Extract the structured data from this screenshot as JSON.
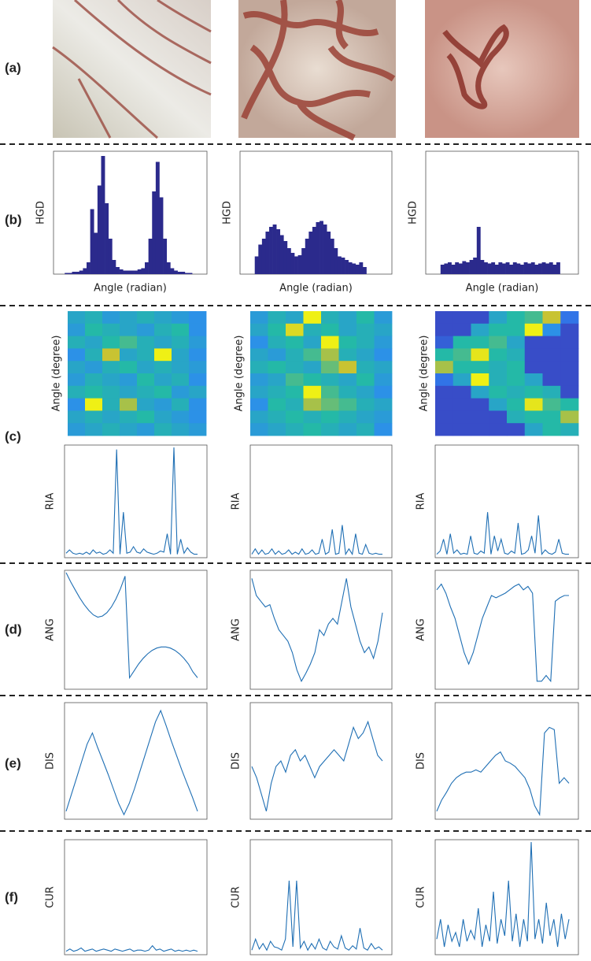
{
  "row_labels": [
    "(a)",
    "(b)",
    "(c)",
    "(d)",
    "(e)",
    "(f)"
  ],
  "ylim": [
    0,
    1
  ],
  "hgd": {
    "type": "histogram",
    "ylabel": "HGD",
    "xlabel": "Angle (radian)",
    "color": "#2b2a8c",
    "plots": [
      [
        0,
        0,
        0.01,
        0.01,
        0.02,
        0.02,
        0.03,
        0.05,
        0.1,
        0.55,
        0.35,
        0.75,
        1.0,
        0.6,
        0.3,
        0.12,
        0.06,
        0.04,
        0.03,
        0.03,
        0.03,
        0.03,
        0.04,
        0.05,
        0.1,
        0.3,
        0.7,
        0.95,
        0.65,
        0.3,
        0.1,
        0.05,
        0.03,
        0.02,
        0.02,
        0.01,
        0.01,
        0,
        0,
        0
      ],
      [
        0,
        0,
        0,
        0.15,
        0.25,
        0.3,
        0.36,
        0.4,
        0.42,
        0.38,
        0.33,
        0.28,
        0.22,
        0.18,
        0.15,
        0.16,
        0.22,
        0.3,
        0.36,
        0.4,
        0.44,
        0.45,
        0.42,
        0.36,
        0.3,
        0.22,
        0.15,
        0.14,
        0.12,
        0.1,
        0.09,
        0.08,
        0.1,
        0.06,
        0,
        0,
        0,
        0,
        0,
        0
      ],
      [
        0,
        0,
        0,
        0.08,
        0.09,
        0.1,
        0.08,
        0.1,
        0.09,
        0.11,
        0.1,
        0.12,
        0.14,
        0.4,
        0.12,
        0.1,
        0.09,
        0.1,
        0.08,
        0.1,
        0.09,
        0.1,
        0.08,
        0.1,
        0.09,
        0.08,
        0.1,
        0.09,
        0.1,
        0.08,
        0.09,
        0.1,
        0.09,
        0.1,
        0.08,
        0.1,
        0,
        0,
        0,
        0
      ]
    ]
  },
  "heatmap": {
    "ylabel": "Angle (degree)",
    "plots": [
      [
        [
          0.4,
          0.45,
          0.35,
          0.4,
          0.45,
          0.4,
          0.35,
          0.3
        ],
        [
          0.35,
          0.5,
          0.45,
          0.4,
          0.35,
          0.45,
          0.5,
          0.3
        ],
        [
          0.45,
          0.4,
          0.5,
          0.55,
          0.45,
          0.4,
          0.45,
          0.35
        ],
        [
          0.3,
          0.45,
          0.75,
          0.4,
          0.45,
          0.95,
          0.4,
          0.3
        ],
        [
          0.4,
          0.35,
          0.45,
          0.5,
          0.4,
          0.45,
          0.4,
          0.35
        ],
        [
          0.35,
          0.45,
          0.4,
          0.35,
          0.5,
          0.4,
          0.45,
          0.3
        ],
        [
          0.45,
          0.5,
          0.45,
          0.4,
          0.45,
          0.5,
          0.35,
          0.4
        ],
        [
          0.3,
          0.95,
          0.45,
          0.7,
          0.4,
          0.35,
          0.45,
          0.3
        ],
        [
          0.4,
          0.45,
          0.4,
          0.45,
          0.5,
          0.4,
          0.35,
          0.3
        ],
        [
          0.35,
          0.4,
          0.45,
          0.4,
          0.35,
          0.45,
          0.4,
          0.35
        ]
      ],
      [
        [
          0.35,
          0.45,
          0.4,
          0.95,
          0.45,
          0.4,
          0.5,
          0.35
        ],
        [
          0.4,
          0.5,
          0.85,
          0.45,
          0.5,
          0.4,
          0.45,
          0.4
        ],
        [
          0.3,
          0.45,
          0.5,
          0.4,
          0.95,
          0.5,
          0.45,
          0.35
        ],
        [
          0.4,
          0.35,
          0.45,
          0.55,
          0.7,
          0.45,
          0.4,
          0.3
        ],
        [
          0.45,
          0.5,
          0.45,
          0.4,
          0.6,
          0.75,
          0.45,
          0.4
        ],
        [
          0.35,
          0.4,
          0.55,
          0.5,
          0.45,
          0.4,
          0.5,
          0.35
        ],
        [
          0.4,
          0.45,
          0.5,
          0.95,
          0.55,
          0.45,
          0.4,
          0.3
        ],
        [
          0.3,
          0.5,
          0.45,
          0.7,
          0.6,
          0.55,
          0.45,
          0.4
        ],
        [
          0.4,
          0.45,
          0.5,
          0.45,
          0.5,
          0.45,
          0.4,
          0.35
        ],
        [
          0.35,
          0.4,
          0.45,
          0.5,
          0.45,
          0.4,
          0.45,
          0.3
        ]
      ],
      [
        [
          0.1,
          0.1,
          0.1,
          0.4,
          0.5,
          0.55,
          0.75,
          0.2
        ],
        [
          0.1,
          0.1,
          0.4,
          0.5,
          0.5,
          0.95,
          0.3,
          0.1
        ],
        [
          0.15,
          0.5,
          0.5,
          0.55,
          0.4,
          0.1,
          0.1,
          0.1
        ],
        [
          0.5,
          0.55,
          0.9,
          0.5,
          0.45,
          0.1,
          0.1,
          0.1
        ],
        [
          0.7,
          0.5,
          0.5,
          0.45,
          0.5,
          0.1,
          0.1,
          0.1
        ],
        [
          0.2,
          0.4,
          0.95,
          0.45,
          0.5,
          0.4,
          0.1,
          0.1
        ],
        [
          0.1,
          0.1,
          0.4,
          0.5,
          0.45,
          0.5,
          0.45,
          0.1
        ],
        [
          0.1,
          0.1,
          0.1,
          0.4,
          0.5,
          0.9,
          0.55,
          0.5
        ],
        [
          0.1,
          0.1,
          0.1,
          0.1,
          0.45,
          0.5,
          0.5,
          0.7
        ],
        [
          0.1,
          0.1,
          0.1,
          0.1,
          0.1,
          0.4,
          0.5,
          0.45
        ]
      ]
    ]
  },
  "ria": {
    "type": "line",
    "ylabel": "RIA",
    "color": "#1f6fb4",
    "plots": [
      [
        0.02,
        0.05,
        0.02,
        0.01,
        0.02,
        0.01,
        0.03,
        0.01,
        0.05,
        0.02,
        0.03,
        0.01,
        0.02,
        0.05,
        0.02,
        0.98,
        0.01,
        0.4,
        0.02,
        0.03,
        0.08,
        0.03,
        0.02,
        0.06,
        0.03,
        0.02,
        0.01,
        0.02,
        0.04,
        0.03,
        0.2,
        0.01,
        1.0,
        0.01,
        0.15,
        0.02,
        0.07,
        0.03,
        0.01,
        0.01
      ],
      [
        0.01,
        0.06,
        0.01,
        0.05,
        0.01,
        0.02,
        0.06,
        0.01,
        0.04,
        0.01,
        0.02,
        0.05,
        0.01,
        0.03,
        0.01,
        0.06,
        0.01,
        0.02,
        0.05,
        0.01,
        0.02,
        0.15,
        0.01,
        0.03,
        0.24,
        0.01,
        0.02,
        0.28,
        0.01,
        0.06,
        0.01,
        0.2,
        0.02,
        0.01,
        0.1,
        0.02,
        0.01,
        0.02,
        0.01,
        0.01
      ],
      [
        0.01,
        0.04,
        0.15,
        0.01,
        0.2,
        0.02,
        0.05,
        0.01,
        0.02,
        0.01,
        0.18,
        0.02,
        0.01,
        0.04,
        0.02,
        0.4,
        0.01,
        0.18,
        0.04,
        0.15,
        0.02,
        0.01,
        0.04,
        0.02,
        0.3,
        0.01,
        0.02,
        0.05,
        0.18,
        0.02,
        0.37,
        0.01,
        0.05,
        0.02,
        0.01,
        0.03,
        0.15,
        0.02,
        0.01,
        0.01
      ]
    ]
  },
  "ang": {
    "type": "line",
    "ylabel": "ANG",
    "color": "#1f6fb4",
    "plots": [
      [
        1.0,
        0.92,
        0.85,
        0.78,
        0.72,
        0.67,
        0.63,
        0.61,
        0.62,
        0.65,
        0.7,
        0.77,
        0.86,
        0.97,
        0.08,
        0.14,
        0.2,
        0.25,
        0.29,
        0.32,
        0.34,
        0.35,
        0.35,
        0.34,
        0.32,
        0.29,
        0.25,
        0.2,
        0.13,
        0.08
      ],
      [
        0.95,
        0.8,
        0.75,
        0.7,
        0.72,
        0.6,
        0.5,
        0.45,
        0.4,
        0.3,
        0.15,
        0.05,
        0.12,
        0.2,
        0.3,
        0.5,
        0.45,
        0.55,
        0.6,
        0.55,
        0.75,
        0.95,
        0.7,
        0.55,
        0.4,
        0.3,
        0.35,
        0.25,
        0.4,
        0.65
      ],
      [
        0.85,
        0.9,
        0.82,
        0.7,
        0.6,
        0.45,
        0.3,
        0.2,
        0.3,
        0.45,
        0.6,
        0.7,
        0.8,
        0.78,
        0.8,
        0.82,
        0.85,
        0.88,
        0.9,
        0.85,
        0.88,
        0.82,
        0.05,
        0.05,
        0.1,
        0.05,
        0.75,
        0.78,
        0.8,
        0.8
      ]
    ]
  },
  "dis": {
    "type": "line",
    "ylabel": "DIS",
    "color": "#1f6fb4",
    "plots": [
      [
        0.05,
        0.2,
        0.35,
        0.5,
        0.65,
        0.75,
        0.62,
        0.5,
        0.38,
        0.25,
        0.12,
        0.02,
        0.12,
        0.25,
        0.4,
        0.55,
        0.7,
        0.85,
        0.95,
        0.82,
        0.68,
        0.55,
        0.42,
        0.3,
        0.18,
        0.05
      ],
      [
        0.45,
        0.35,
        0.2,
        0.05,
        0.3,
        0.45,
        0.5,
        0.4,
        0.55,
        0.6,
        0.5,
        0.55,
        0.45,
        0.35,
        0.45,
        0.5,
        0.55,
        0.6,
        0.55,
        0.5,
        0.65,
        0.8,
        0.7,
        0.75,
        0.85,
        0.7,
        0.55,
        0.5
      ],
      [
        0.05,
        0.15,
        0.22,
        0.3,
        0.35,
        0.38,
        0.4,
        0.4,
        0.42,
        0.4,
        0.45,
        0.5,
        0.55,
        0.58,
        0.5,
        0.48,
        0.45,
        0.4,
        0.35,
        0.25,
        0.1,
        0.02,
        0.75,
        0.8,
        0.78,
        0.3,
        0.35,
        0.3
      ]
    ]
  },
  "cur": {
    "type": "line",
    "ylabel": "CUR",
    "color": "#1f6fb4",
    "plots": [
      [
        0.01,
        0.03,
        0.01,
        0.02,
        0.04,
        0.01,
        0.02,
        0.03,
        0.01,
        0.02,
        0.03,
        0.02,
        0.01,
        0.03,
        0.02,
        0.01,
        0.02,
        0.03,
        0.01,
        0.02,
        0.02,
        0.01,
        0.02,
        0.06,
        0.02,
        0.03,
        0.01,
        0.02,
        0.03,
        0.01,
        0.02,
        0.01,
        0.02,
        0.01,
        0.02,
        0.01
      ],
      [
        0.02,
        0.12,
        0.03,
        0.08,
        0.02,
        0.1,
        0.05,
        0.04,
        0.02,
        0.12,
        0.65,
        0.05,
        0.65,
        0.04,
        0.1,
        0.02,
        0.08,
        0.03,
        0.12,
        0.04,
        0.02,
        0.1,
        0.05,
        0.03,
        0.15,
        0.04,
        0.02,
        0.06,
        0.03,
        0.22,
        0.04,
        0.02,
        0.08,
        0.03,
        0.05,
        0.02
      ],
      [
        0.12,
        0.3,
        0.05,
        0.25,
        0.1,
        0.18,
        0.05,
        0.3,
        0.1,
        0.2,
        0.12,
        0.4,
        0.05,
        0.25,
        0.1,
        0.55,
        0.08,
        0.3,
        0.15,
        0.65,
        0.1,
        0.35,
        0.05,
        0.3,
        0.1,
        1.0,
        0.12,
        0.3,
        0.08,
        0.45,
        0.15,
        0.3,
        0.05,
        0.35,
        0.12,
        0.3
      ]
    ]
  }
}
